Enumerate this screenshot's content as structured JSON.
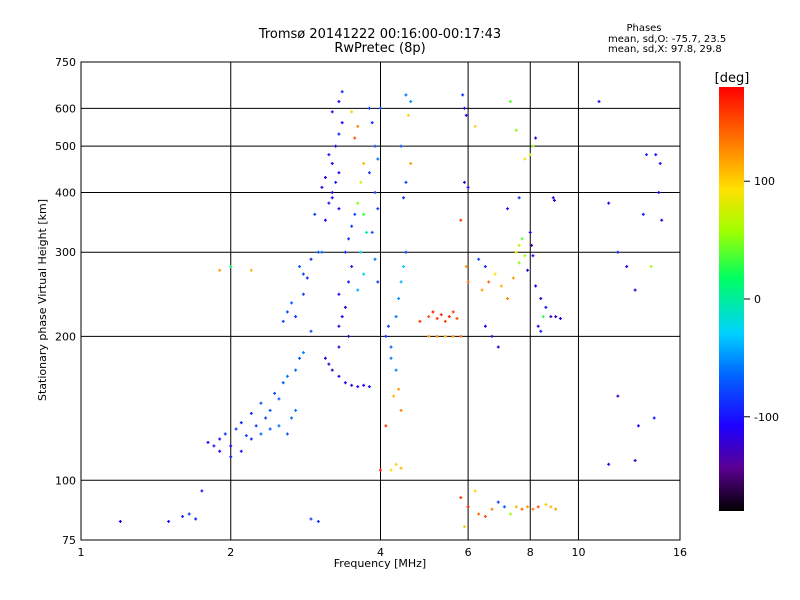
{
  "chart_data": {
    "type": "scatter",
    "title": "Tromsø 20141222 00:16:00-00:17:43",
    "subtitle": "RwPretec (8p)",
    "stats": {
      "heading": "Phases",
      "line_o": "mean, sd,O: -75.7, 23.5",
      "line_x": "mean, sd,X:  97.8, 29.8"
    },
    "xlabel": "Frequency [MHz]",
    "ylabel": "Stationary phase Virtual Height [km]",
    "x_scale": "log",
    "y_scale": "log",
    "xlim": [
      1,
      16
    ],
    "ylim": [
      75,
      750
    ],
    "x_ticks": [
      1,
      2,
      4,
      6,
      8,
      10,
      16
    ],
    "x_tick_labels": [
      "1",
      "2",
      "4",
      "6",
      "8",
      "10",
      "16"
    ],
    "y_ticks": [
      75,
      100,
      200,
      300,
      400,
      500,
      600,
      750
    ],
    "y_tick_labels": [
      "75",
      "100",
      "200",
      "300",
      "400",
      "500",
      "600",
      "750"
    ],
    "grid": true,
    "colorbar": {
      "label": "[deg]",
      "range": [
        -180,
        180
      ],
      "ticks": [
        100,
        0,
        -100
      ],
      "tick_labels": [
        "100",
        "0",
        "-100"
      ]
    },
    "points": [
      [
        1.8,
        120,
        -110
      ],
      [
        1.85,
        118,
        -95
      ],
      [
        1.9,
        122,
        -100
      ],
      [
        1.95,
        125,
        -90
      ],
      [
        2.0,
        118,
        -105
      ],
      [
        2.05,
        128,
        -85
      ],
      [
        2.1,
        132,
        -95
      ],
      [
        2.15,
        124,
        -80
      ],
      [
        2.2,
        138,
        -90
      ],
      [
        2.25,
        130,
        -85
      ],
      [
        2.3,
        145,
        -75
      ],
      [
        2.35,
        135,
        -80
      ],
      [
        2.4,
        140,
        -70
      ],
      [
        2.45,
        152,
        -75
      ],
      [
        2.5,
        148,
        -65
      ],
      [
        2.55,
        160,
        -70
      ],
      [
        2.6,
        165,
        -60
      ],
      [
        2.7,
        170,
        -65
      ],
      [
        2.75,
        180,
        -75
      ],
      [
        2.8,
        185,
        -55
      ],
      [
        2.6,
        125,
        -70
      ],
      [
        2.65,
        135,
        -65
      ],
      [
        2.5,
        130,
        -60
      ],
      [
        2.4,
        128,
        -70
      ],
      [
        2.2,
        122,
        -90
      ],
      [
        2.1,
        115,
        -100
      ],
      [
        2.0,
        112,
        -95
      ],
      [
        1.9,
        115,
        -105
      ],
      [
        2.3,
        125,
        -65
      ],
      [
        2.7,
        140,
        -60
      ],
      [
        2.55,
        215,
        -80
      ],
      [
        2.6,
        225,
        -75
      ],
      [
        2.65,
        235,
        -70
      ],
      [
        2.7,
        220,
        -85
      ],
      [
        2.8,
        245,
        -80
      ],
      [
        2.85,
        265,
        -90
      ],
      [
        2.9,
        290,
        -95
      ],
      [
        2.95,
        360,
        -80
      ],
      [
        3.0,
        300,
        -70
      ],
      [
        2.9,
        205,
        -75
      ],
      [
        3.1,
        350,
        -110
      ],
      [
        3.15,
        380,
        -100
      ],
      [
        3.2,
        400,
        -120
      ],
      [
        3.25,
        420,
        -95
      ],
      [
        3.3,
        440,
        -105
      ],
      [
        3.2,
        460,
        -115
      ],
      [
        3.15,
        480,
        -100
      ],
      [
        3.25,
        500,
        -110
      ],
      [
        3.3,
        530,
        -95
      ],
      [
        3.35,
        560,
        -105
      ],
      [
        3.2,
        590,
        -100
      ],
      [
        3.3,
        620,
        -110
      ],
      [
        3.35,
        650,
        -90
      ],
      [
        3.1,
        430,
        -115
      ],
      [
        3.05,
        410,
        -120
      ],
      [
        3.2,
        390,
        -105
      ],
      [
        3.3,
        370,
        -110
      ],
      [
        3.3,
        210,
        -120
      ],
      [
        3.35,
        220,
        -110
      ],
      [
        3.4,
        230,
        -115
      ],
      [
        3.3,
        245,
        -105
      ],
      [
        3.45,
        260,
        -100
      ],
      [
        3.5,
        280,
        -95
      ],
      [
        3.4,
        300,
        -90
      ],
      [
        3.45,
        320,
        -85
      ],
      [
        3.5,
        340,
        -80
      ],
      [
        3.55,
        360,
        -75
      ],
      [
        3.45,
        200,
        -125
      ],
      [
        3.3,
        190,
        -120
      ],
      [
        3.3,
        165,
        -115
      ],
      [
        3.4,
        160,
        -110
      ],
      [
        3.5,
        158,
        -120
      ],
      [
        3.6,
        157,
        -110
      ],
      [
        3.7,
        158,
        -105
      ],
      [
        3.8,
        157,
        -100
      ],
      [
        3.2,
        170,
        -125
      ],
      [
        3.15,
        175,
        -120
      ],
      [
        3.1,
        180,
        -115
      ],
      [
        3.6,
        250,
        -40
      ],
      [
        3.7,
        270,
        -30
      ],
      [
        3.65,
        300,
        -20
      ],
      [
        3.75,
        330,
        0
      ],
      [
        3.7,
        360,
        30
      ],
      [
        3.6,
        380,
        50
      ],
      [
        3.65,
        420,
        80
      ],
      [
        3.7,
        460,
        110
      ],
      [
        3.55,
        520,
        150
      ],
      [
        3.6,
        550,
        130
      ],
      [
        3.5,
        590,
        100
      ],
      [
        3.8,
        600,
        -80
      ],
      [
        3.85,
        560,
        -90
      ],
      [
        3.9,
        500,
        -70
      ],
      [
        3.95,
        470,
        -60
      ],
      [
        3.8,
        440,
        -85
      ],
      [
        3.9,
        400,
        -75
      ],
      [
        3.95,
        370,
        -80
      ],
      [
        3.85,
        330,
        -70
      ],
      [
        3.9,
        290,
        -60
      ],
      [
        3.95,
        260,
        -85
      ],
      [
        4.0,
        600,
        -75
      ],
      [
        4.1,
        200,
        -90
      ],
      [
        4.15,
        210,
        -80
      ],
      [
        4.2,
        190,
        -70
      ],
      [
        4.3,
        220,
        -60
      ],
      [
        4.35,
        240,
        -50
      ],
      [
        4.4,
        260,
        -40
      ],
      [
        4.45,
        280,
        -30
      ],
      [
        4.5,
        300,
        -80
      ],
      [
        4.2,
        180,
        -60
      ],
      [
        4.3,
        170,
        -55
      ],
      [
        4.25,
        150,
        110
      ],
      [
        4.35,
        155,
        120
      ],
      [
        4.4,
        140,
        130
      ],
      [
        4.1,
        130,
        160
      ],
      [
        4.0,
        105,
        170
      ],
      [
        4.2,
        105,
        90
      ],
      [
        4.3,
        108,
        100
      ],
      [
        4.4,
        106,
        110
      ],
      [
        4.5,
        640,
        -60
      ],
      [
        4.6,
        620,
        -50
      ],
      [
        4.55,
        580,
        100
      ],
      [
        4.4,
        500,
        -70
      ],
      [
        4.6,
        460,
        120
      ],
      [
        4.5,
        420,
        -80
      ],
      [
        4.45,
        390,
        -90
      ],
      [
        4.8,
        215,
        160
      ],
      [
        5.0,
        220,
        150
      ],
      [
        5.1,
        225,
        170
      ],
      [
        5.2,
        218,
        160
      ],
      [
        5.3,
        222,
        165
      ],
      [
        5.4,
        215,
        155
      ],
      [
        5.5,
        220,
        170
      ],
      [
        5.6,
        225,
        160
      ],
      [
        5.7,
        218,
        150
      ],
      [
        5.8,
        200,
        140
      ],
      [
        5.0,
        200,
        120
      ],
      [
        5.2,
        200,
        130
      ],
      [
        5.4,
        200,
        110
      ],
      [
        5.6,
        200,
        125
      ],
      [
        5.9,
        600,
        -100
      ],
      [
        5.95,
        580,
        -110
      ],
      [
        5.85,
        640,
        -90
      ],
      [
        5.9,
        420,
        -120
      ],
      [
        6.0,
        410,
        -110
      ],
      [
        5.8,
        350,
        160
      ],
      [
        5.95,
        280,
        120
      ],
      [
        6.0,
        260,
        140
      ],
      [
        6.2,
        550,
        100
      ],
      [
        6.3,
        290,
        -80
      ],
      [
        6.5,
        280,
        -90
      ],
      [
        6.4,
        250,
        120
      ],
      [
        6.6,
        260,
        140
      ],
      [
        6.8,
        270,
        90
      ],
      [
        7.0,
        255,
        110
      ],
      [
        7.2,
        240,
        130
      ],
      [
        7.4,
        265,
        120
      ],
      [
        6.5,
        210,
        -110
      ],
      [
        6.7,
        200,
        -130
      ],
      [
        6.9,
        190,
        -120
      ],
      [
        7.5,
        300,
        80
      ],
      [
        7.6,
        310,
        70
      ],
      [
        7.7,
        320,
        40
      ],
      [
        7.8,
        295,
        60
      ],
      [
        7.6,
        285,
        50
      ],
      [
        8.0,
        330,
        -120
      ],
      [
        8.05,
        310,
        -130
      ],
      [
        8.1,
        295,
        -115
      ],
      [
        7.9,
        275,
        -125
      ],
      [
        8.2,
        255,
        -110
      ],
      [
        8.4,
        240,
        -120
      ],
      [
        8.6,
        230,
        -100
      ],
      [
        8.8,
        220,
        -130
      ],
      [
        9.0,
        220,
        -125
      ],
      [
        9.2,
        218,
        -110
      ],
      [
        8.3,
        210,
        -105
      ],
      [
        8.5,
        220,
        30
      ],
      [
        8.0,
        480,
        80
      ],
      [
        8.1,
        500,
        60
      ],
      [
        8.2,
        520,
        -120
      ],
      [
        7.8,
        470,
        90
      ],
      [
        8.9,
        390,
        -110
      ],
      [
        8.95,
        385,
        -120
      ],
      [
        8.4,
        205,
        -100
      ],
      [
        7.3,
        620,
        40
      ],
      [
        7.5,
        540,
        50
      ],
      [
        7.6,
        390,
        -90
      ],
      [
        7.2,
        370,
        -100
      ],
      [
        5.8,
        92,
        160
      ],
      [
        6.0,
        88,
        170
      ],
      [
        6.3,
        85,
        140
      ],
      [
        6.5,
        84,
        150
      ],
      [
        6.7,
        87,
        130
      ],
      [
        6.9,
        90,
        -80
      ],
      [
        7.1,
        88,
        -70
      ],
      [
        7.3,
        85,
        60
      ],
      [
        7.5,
        88,
        110
      ],
      [
        7.7,
        87,
        140
      ],
      [
        7.9,
        88,
        120
      ],
      [
        8.1,
        87,
        130
      ],
      [
        8.3,
        88,
        150
      ],
      [
        8.6,
        89,
        100
      ],
      [
        8.8,
        88,
        110
      ],
      [
        9.0,
        87,
        120
      ],
      [
        6.2,
        95,
        100
      ],
      [
        5.9,
        80,
        100
      ],
      [
        11.0,
        620,
        -100
      ],
      [
        12.5,
        280,
        -110
      ],
      [
        13.0,
        250,
        -120
      ],
      [
        12.0,
        300,
        -90
      ],
      [
        13.5,
        360,
        -100
      ],
      [
        14.5,
        400,
        -110
      ],
      [
        14.7,
        350,
        -120
      ],
      [
        14.3,
        480,
        -100
      ],
      [
        14.0,
        280,
        60
      ],
      [
        11.5,
        380,
        -110
      ],
      [
        13.0,
        110,
        -120
      ],
      [
        12.0,
        150,
        -130
      ],
      [
        13.2,
        130,
        -110
      ],
      [
        11.5,
        108,
        -115
      ],
      [
        14.2,
        135,
        -100
      ],
      [
        13.7,
        480,
        -90
      ],
      [
        14.6,
        460,
        -100
      ],
      [
        1.2,
        82,
        -110
      ],
      [
        1.5,
        82,
        -100
      ],
      [
        1.6,
        84,
        -90
      ],
      [
        1.7,
        83,
        -95
      ],
      [
        1.75,
        95,
        -100
      ],
      [
        1.65,
        85,
        -85
      ],
      [
        2.9,
        83,
        -80
      ],
      [
        3.0,
        82,
        -85
      ],
      [
        2.8,
        270,
        -80
      ],
      [
        2.75,
        280,
        -70
      ],
      [
        3.05,
        300,
        -60
      ],
      [
        2.0,
        280,
        20
      ],
      [
        1.9,
        275,
        120
      ],
      [
        2.2,
        275,
        110
      ]
    ]
  }
}
